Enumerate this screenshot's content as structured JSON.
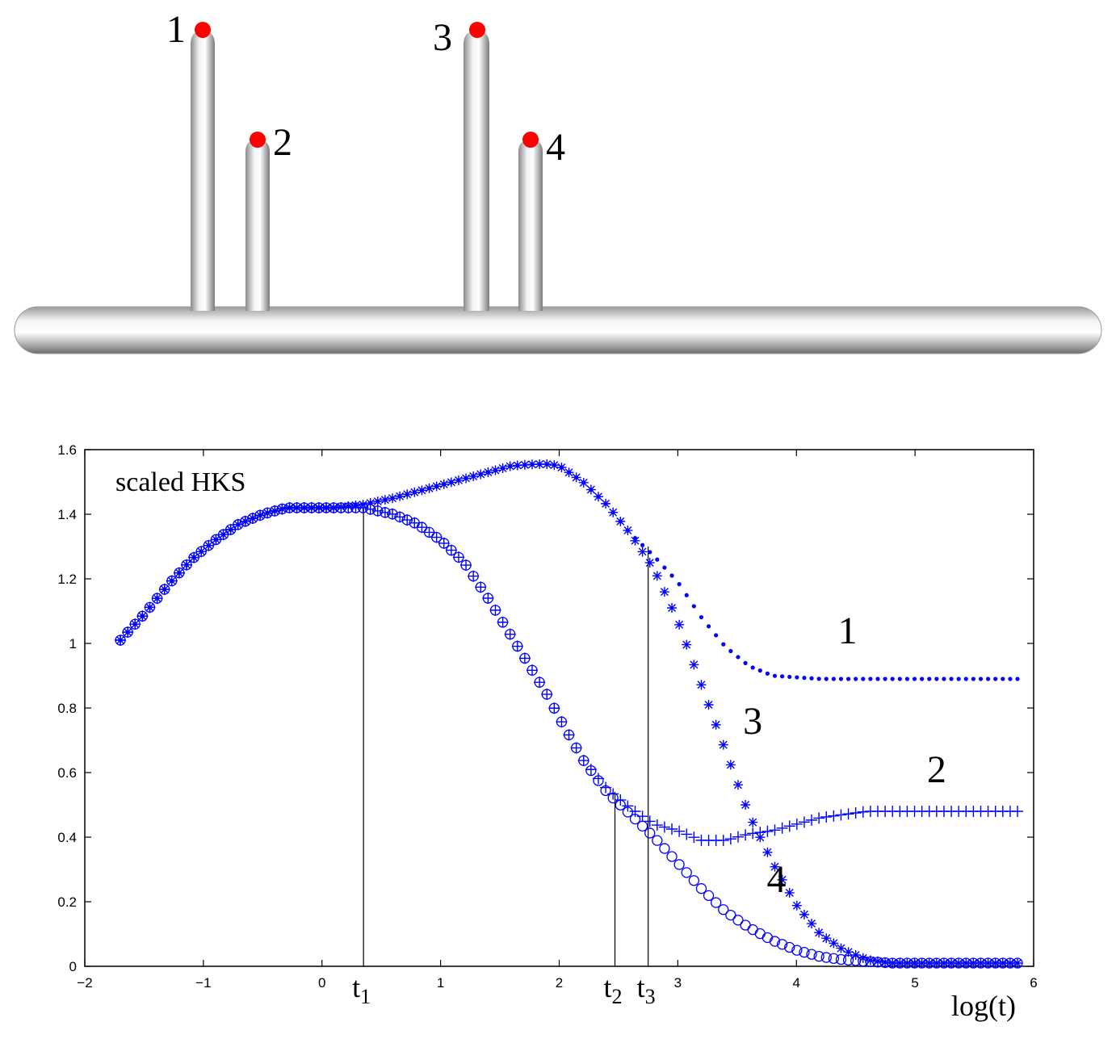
{
  "shape": {
    "point_labels": [
      "1",
      "2",
      "3",
      "4"
    ],
    "point_color": "#ff0000"
  },
  "chart_data": {
    "type": "scatter",
    "annotation": "scaled HKS",
    "xlabel": "log(t)",
    "ylabel": "",
    "xlim": [
      -2,
      6
    ],
    "ylim": [
      0,
      1.6
    ],
    "x_ticks": [
      "−2",
      "−1",
      "0",
      "1",
      "2",
      "3",
      "4",
      "5",
      "6"
    ],
    "y_ticks": [
      "0",
      "0.2",
      "0.4",
      "0.6",
      "0.8",
      "1",
      "1.2",
      "1.4",
      "1.6"
    ],
    "grid": false,
    "marker_color": "#0000ff",
    "markers": {
      "1": "dot",
      "2": "plus",
      "3": "asterisk",
      "4": "circle"
    },
    "time_markers": [
      {
        "label": "t",
        "sub": "1",
        "x": 0.35,
        "y": 1.42
      },
      {
        "label": "t",
        "sub": "2",
        "x": 2.47,
        "y": 0.54
      },
      {
        "label": "t",
        "sub": "3",
        "x": 2.75,
        "y": 1.3
      }
    ],
    "x": [
      -1.7,
      -1.5,
      -1.3,
      -1.1,
      -0.9,
      -0.7,
      -0.5,
      -0.3,
      -0.1,
      0.1,
      0.35,
      0.6,
      0.8,
      1.0,
      1.2,
      1.4,
      1.6,
      1.8,
      1.9,
      2.0,
      2.2,
      2.4,
      2.6,
      2.8,
      3.0,
      3.2,
      3.4,
      3.6,
      3.8,
      4.0,
      4.2,
      4.4,
      4.6,
      4.8,
      5.0,
      5.5,
      5.9
    ],
    "series": [
      {
        "name": "1",
        "values": [
          1.01,
          1.09,
          1.18,
          1.26,
          1.32,
          1.37,
          1.4,
          1.42,
          1.42,
          1.42,
          1.43,
          1.45,
          1.47,
          1.49,
          1.51,
          1.53,
          1.55,
          1.555,
          1.555,
          1.55,
          1.5,
          1.43,
          1.34,
          1.27,
          1.19,
          1.08,
          0.99,
          0.93,
          0.9,
          0.895,
          0.89,
          0.89,
          0.89,
          0.89,
          0.89,
          0.89,
          0.89
        ]
      },
      {
        "name": "2",
        "values": [
          1.01,
          1.09,
          1.18,
          1.26,
          1.32,
          1.37,
          1.4,
          1.42,
          1.42,
          1.42,
          1.42,
          1.4,
          1.37,
          1.32,
          1.25,
          1.14,
          1.02,
          0.9,
          0.84,
          0.77,
          0.64,
          0.55,
          0.49,
          0.44,
          0.42,
          0.39,
          0.39,
          0.41,
          0.42,
          0.44,
          0.46,
          0.47,
          0.48,
          0.48,
          0.48,
          0.48,
          0.48
        ]
      },
      {
        "name": "3",
        "values": [
          1.01,
          1.09,
          1.18,
          1.26,
          1.32,
          1.37,
          1.4,
          1.42,
          1.42,
          1.42,
          1.43,
          1.45,
          1.47,
          1.49,
          1.51,
          1.53,
          1.55,
          1.555,
          1.555,
          1.55,
          1.5,
          1.43,
          1.34,
          1.23,
          1.07,
          0.87,
          0.67,
          0.47,
          0.32,
          0.19,
          0.1,
          0.05,
          0.02,
          0.01,
          0.01,
          0.01,
          0.01
        ]
      },
      {
        "name": "4",
        "values": [
          1.01,
          1.09,
          1.18,
          1.26,
          1.32,
          1.37,
          1.4,
          1.42,
          1.42,
          1.42,
          1.42,
          1.4,
          1.37,
          1.32,
          1.25,
          1.14,
          1.02,
          0.9,
          0.84,
          0.77,
          0.64,
          0.54,
          0.47,
          0.4,
          0.32,
          0.24,
          0.17,
          0.12,
          0.08,
          0.05,
          0.03,
          0.02,
          0.015,
          0.01,
          0.01,
          0.01,
          0.01
        ]
      }
    ],
    "curve_labels": [
      {
        "text": "1",
        "x": 4.35,
        "y": 1.0
      },
      {
        "text": "3",
        "x": 3.55,
        "y": 0.72
      },
      {
        "text": "2",
        "x": 5.1,
        "y": 0.57
      },
      {
        "text": "4",
        "x": 3.75,
        "y": 0.23
      }
    ]
  }
}
